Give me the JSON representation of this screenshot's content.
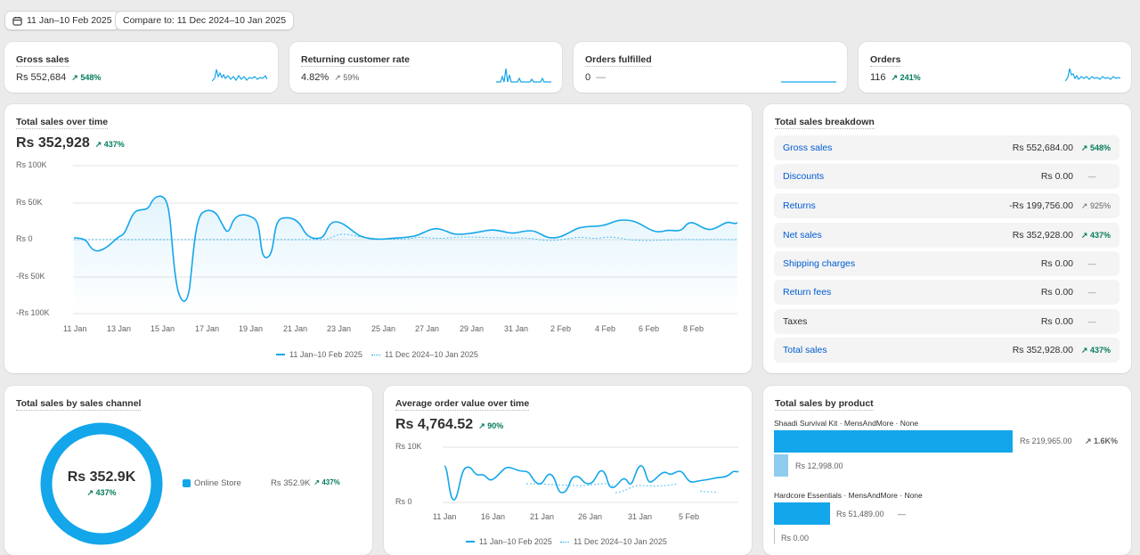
{
  "header": {
    "date_range": "11 Jan–10 Feb 2025",
    "compare_label": "Compare to: 11 Dec 2024–10 Jan 2025"
  },
  "kpis": [
    {
      "label": "Gross sales",
      "value": "Rs 552,684",
      "change": "548%",
      "trend": "up"
    },
    {
      "label": "Returning customer rate",
      "value": "4.82%",
      "change": "59%",
      "trend": "up-neutral"
    },
    {
      "label": "Orders fulfilled",
      "value": "0",
      "change": "—",
      "trend": "none"
    },
    {
      "label": "Orders",
      "value": "116",
      "change": "241%",
      "trend": "up"
    }
  ],
  "total_sales_time": {
    "title": "Total sales over time",
    "value": "Rs 352,928",
    "change": "437%",
    "y_ticks": [
      "Rs 100K",
      "Rs 50K",
      "Rs 0",
      "-Rs 50K",
      "-Rs 100K"
    ],
    "x_ticks": [
      "11 Jan",
      "13 Jan",
      "15 Jan",
      "17 Jan",
      "19 Jan",
      "21 Jan",
      "23 Jan",
      "25 Jan",
      "27 Jan",
      "29 Jan",
      "31 Jan",
      "2 Feb",
      "4 Feb",
      "6 Feb",
      "8 Feb"
    ],
    "legend_current": "11 Jan–10 Feb 2025",
    "legend_previous": "11 Dec 2024–10 Jan 2025"
  },
  "breakdown": {
    "title": "Total sales breakdown",
    "rows": [
      {
        "label": "Gross sales",
        "amount": "Rs 552,684.00",
        "change": "548%",
        "trend": "up",
        "link": true
      },
      {
        "label": "Discounts",
        "amount": "Rs 0.00",
        "change": "—",
        "trend": "none",
        "link": true
      },
      {
        "label": "Returns",
        "amount": "-Rs 199,756.00",
        "change": "925%",
        "trend": "up-neutral",
        "link": true
      },
      {
        "label": "Net sales",
        "amount": "Rs 352,928.00",
        "change": "437%",
        "trend": "up",
        "link": true
      },
      {
        "label": "Shipping charges",
        "amount": "Rs 0.00",
        "change": "—",
        "trend": "none",
        "link": true
      },
      {
        "label": "Return fees",
        "amount": "Rs 0.00",
        "change": "—",
        "trend": "none",
        "link": true
      },
      {
        "label": "Taxes",
        "amount": "Rs 0.00",
        "change": "—",
        "trend": "none",
        "link": false
      },
      {
        "label": "Total sales",
        "amount": "Rs 352,928.00",
        "change": "437%",
        "trend": "up",
        "link": true
      }
    ]
  },
  "channel": {
    "title": "Total sales by sales channel",
    "center_value": "Rs 352.9K",
    "center_change": "437%",
    "legend_label": "Online Store",
    "legend_value": "Rs 352.9K",
    "legend_change": "437%"
  },
  "aov": {
    "title": "Average order value over time",
    "value": "Rs 4,764.52",
    "change": "90%",
    "y_ticks": [
      "Rs 10K",
      "Rs 0"
    ],
    "x_ticks": [
      "11 Jan",
      "16 Jan",
      "21 Jan",
      "26 Jan",
      "31 Jan",
      "5 Feb"
    ],
    "legend_current": "11 Jan–10 Feb 2025",
    "legend_previous": "11 Dec 2024–10 Jan 2025"
  },
  "by_product": {
    "title": "Total sales by product",
    "products": [
      {
        "name": "Shaadi Survival Kit · MensAndMore · None",
        "value": "Rs 219,965.00",
        "change": "1.6K%",
        "prev_value": "Rs 12,998.00",
        "fraction": 1.0,
        "prev_fraction": 0.059
      },
      {
        "name": "Hardcore Essentials · MensAndMore · None",
        "value": "Rs 51,489.00",
        "change": "—",
        "prev_value": "Rs 0.00",
        "fraction": 0.234,
        "prev_fraction": 0
      }
    ]
  },
  "colors": {
    "accent": "#13a6ea",
    "positive": "#047b5d",
    "link": "#005bd3"
  }
}
